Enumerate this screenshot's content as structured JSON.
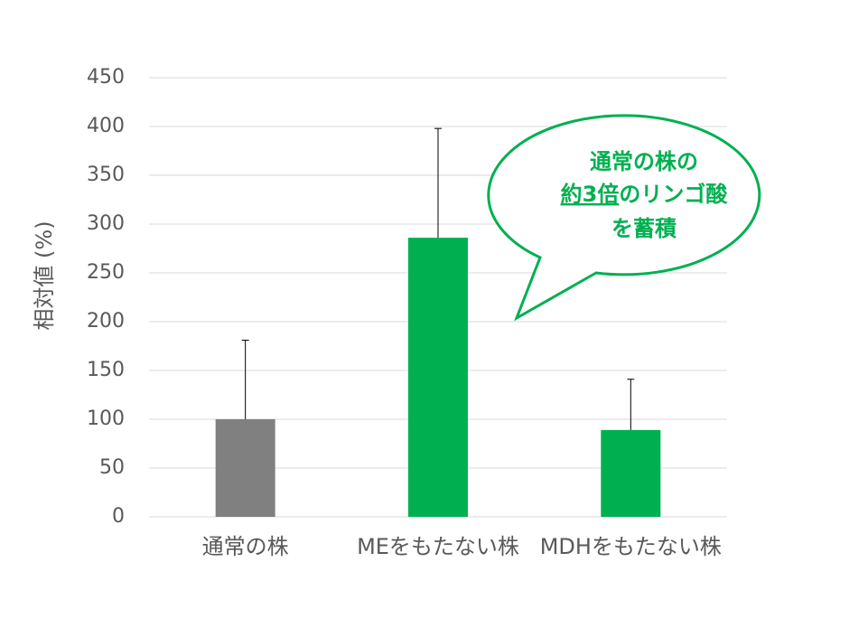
{
  "chart_data": {
    "type": "bar",
    "y_label": "相対値 (%)",
    "categories": [
      "通常の株",
      "MEをもたない株",
      "MDHをもたない株"
    ],
    "values": [
      100,
      286,
      89
    ],
    "errors": [
      81,
      112,
      52
    ],
    "colors": [
      "#808080",
      "#00b050",
      "#00b050"
    ],
    "ylim": [
      0,
      450
    ],
    "yticks": [
      0,
      50,
      100,
      150,
      200,
      250,
      300,
      350,
      400,
      450
    ],
    "grid": true,
    "annotation": {
      "line1": "通常の株の",
      "line2_underlined": "約3倍",
      "line2_rest": "のリンゴ酸",
      "line3": "を蓄積",
      "color": "#00b050"
    }
  }
}
